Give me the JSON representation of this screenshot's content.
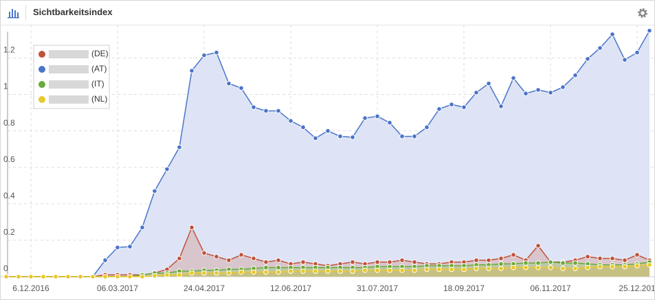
{
  "header": {
    "title": "Sichtbarkeitsindex"
  },
  "chart_data": {
    "type": "line",
    "categories": [
      null,
      null,
      "6.12.2016",
      null,
      null,
      null,
      null,
      null,
      null,
      "06.03.2017",
      null,
      null,
      null,
      null,
      null,
      null,
      "24.04.2017",
      null,
      null,
      null,
      null,
      null,
      null,
      "12.06.2017",
      null,
      null,
      null,
      null,
      null,
      null,
      "31.07.2017",
      null,
      null,
      null,
      null,
      null,
      null,
      "18.09.2017",
      null,
      null,
      null,
      null,
      null,
      null,
      "06.11.2017",
      null,
      null,
      null,
      null,
      null,
      null,
      "25.12.201",
      null
    ],
    "ylim": [
      0,
      1.36
    ],
    "yticks": [
      0,
      0.2,
      0.4,
      0.6,
      0.8,
      1,
      1.2
    ],
    "grid": true,
    "legend": "top-left",
    "series": [
      {
        "name": "(DE)",
        "color": "#c0533a",
        "values": [
          0,
          0,
          0,
          0,
          0,
          0,
          0,
          0,
          0.01,
          0.01,
          0.01,
          0.01,
          0.02,
          0.04,
          0.1,
          0.27,
          0.13,
          0.11,
          0.09,
          0.12,
          0.1,
          0.08,
          0.09,
          0.07,
          0.08,
          0.07,
          0.06,
          0.07,
          0.08,
          0.07,
          0.08,
          0.08,
          0.09,
          0.08,
          0.07,
          0.07,
          0.08,
          0.08,
          0.09,
          0.09,
          0.1,
          0.12,
          0.09,
          0.17,
          0.08,
          0.08,
          0.09,
          0.11,
          0.1,
          0.1,
          0.09,
          0.12,
          0.09
        ]
      },
      {
        "name": "(AT)",
        "color": "#4a74c9",
        "values": [
          0,
          0,
          0,
          0,
          0,
          0,
          0,
          0,
          0.09,
          0.16,
          0.165,
          0.27,
          0.47,
          0.59,
          0.71,
          1.13,
          1.215,
          1.23,
          1.06,
          1.035,
          0.93,
          0.91,
          0.91,
          0.855,
          0.82,
          0.76,
          0.8,
          0.77,
          0.765,
          0.87,
          0.88,
          0.845,
          0.77,
          0.77,
          0.82,
          0.92,
          0.945,
          0.93,
          1.01,
          1.06,
          0.935,
          1.09,
          1.005,
          1.025,
          1.01,
          1.04,
          1.105,
          1.195,
          1.255,
          1.33,
          1.19,
          1.23,
          1.35
        ]
      },
      {
        "name": "(IT)",
        "color": "#6aaa3a",
        "values": [
          0,
          0,
          0,
          0,
          0,
          0,
          0,
          0,
          0,
          0,
          0,
          0.01,
          0.02,
          0.02,
          0.03,
          0.03,
          0.035,
          0.035,
          0.04,
          0.04,
          0.045,
          0.05,
          0.05,
          0.05,
          0.05,
          0.05,
          0.05,
          0.05,
          0.05,
          0.05,
          0.055,
          0.055,
          0.055,
          0.055,
          0.06,
          0.06,
          0.06,
          0.06,
          0.065,
          0.065,
          0.07,
          0.07,
          0.075,
          0.075,
          0.08,
          0.075,
          0.075,
          0.07,
          0.065,
          0.065,
          0.065,
          0.07,
          0.08
        ]
      },
      {
        "name": "(NL)",
        "color": "#e8c82a",
        "values": [
          0,
          0,
          0,
          0,
          0,
          0,
          0,
          0,
          0,
          0,
          0,
          0,
          0.005,
          0.01,
          0.01,
          0.02,
          0.02,
          0.02,
          0.02,
          0.025,
          0.025,
          0.025,
          0.025,
          0.03,
          0.03,
          0.03,
          0.03,
          0.03,
          0.03,
          0.035,
          0.035,
          0.035,
          0.035,
          0.035,
          0.04,
          0.04,
          0.04,
          0.04,
          0.045,
          0.045,
          0.045,
          0.05,
          0.05,
          0.05,
          0.05,
          0.045,
          0.045,
          0.05,
          0.055,
          0.055,
          0.055,
          0.06,
          0.065
        ]
      }
    ]
  }
}
